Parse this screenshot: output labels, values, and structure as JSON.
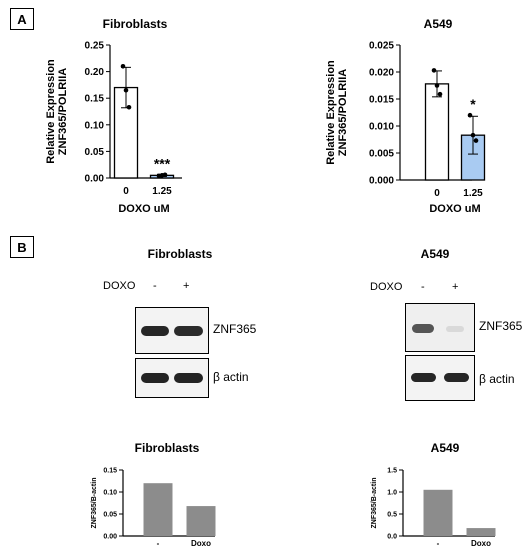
{
  "panels": {
    "a": {
      "label": "A"
    },
    "b": {
      "label": "B"
    }
  },
  "blots": [
    {
      "title": "Fibroblasts",
      "treatment_label": "DOXO",
      "lanes": [
        "-",
        "+"
      ],
      "bands": [
        {
          "label": "ZNF365",
          "intensity": [
            1.0,
            0.95
          ]
        },
        {
          "label": "β actin",
          "intensity": [
            1.0,
            1.0
          ]
        }
      ]
    },
    {
      "title": "A549",
      "treatment_label": "DOXO",
      "lanes": [
        "-",
        "+"
      ],
      "bands": [
        {
          "label": "ZNF365",
          "intensity": [
            0.55,
            0.12
          ]
        },
        {
          "label": "β actin",
          "intensity": [
            1.0,
            1.0
          ]
        }
      ]
    }
  ],
  "chart_data": [
    {
      "type": "bar",
      "title": "Fibroblasts",
      "ylabel": "Relative Expression\nZNF365/POLRIIA",
      "xlabel": "DOXO uM",
      "categories": [
        "0",
        "1.25"
      ],
      "values": [
        0.17,
        0.005
      ],
      "error": [
        0.038,
        0.002
      ],
      "points": [
        [
          0.21,
          0.165,
          0.133
        ],
        [
          0.004,
          0.005,
          0.006
        ]
      ],
      "significance": [
        "",
        "***"
      ],
      "yticks": [
        "0.00",
        "0.05",
        "0.10",
        "0.15",
        "0.20",
        "0.25"
      ],
      "ylim": [
        0,
        0.25
      ],
      "colors": [
        "#ffffff",
        "#a9cbf2"
      ]
    },
    {
      "type": "bar",
      "title": "A549",
      "ylabel": "Relative Expression\nZNF365/POLRIIA",
      "xlabel": "DOXO uM",
      "categories": [
        "0",
        "1.25"
      ],
      "values": [
        0.0178,
        0.0083
      ],
      "error": [
        0.0024,
        0.0035
      ],
      "points": [
        [
          0.0203,
          0.0175,
          0.0159
        ],
        [
          0.012,
          0.0083,
          0.0073
        ]
      ],
      "significance": [
        "",
        "*"
      ],
      "yticks": [
        "0.000",
        "0.005",
        "0.010",
        "0.015",
        "0.020",
        "0.025"
      ],
      "ylim": [
        0,
        0.025
      ],
      "colors": [
        "#ffffff",
        "#a9cbf2"
      ]
    },
    {
      "type": "bar",
      "title": "Fibroblasts",
      "ylabel": "ZNF365/B-actin",
      "xlabel": "",
      "categories": [
        "-",
        "Doxo"
      ],
      "values": [
        0.12,
        0.068
      ],
      "yticks": [
        "0.00",
        "0.05",
        "0.10",
        "0.15"
      ],
      "ylim": [
        0,
        0.15
      ],
      "colors": [
        "#8c8c8c",
        "#8c8c8c"
      ]
    },
    {
      "type": "bar",
      "title": "A549",
      "ylabel": "ZNF365/B-actin",
      "xlabel": "",
      "categories": [
        "-",
        "Doxo"
      ],
      "values": [
        1.05,
        0.18
      ],
      "yticks": [
        "0.0",
        "0.5",
        "1.0",
        "1.5"
      ],
      "ylim": [
        0,
        1.5
      ],
      "colors": [
        "#8c8c8c",
        "#8c8c8c"
      ]
    }
  ]
}
